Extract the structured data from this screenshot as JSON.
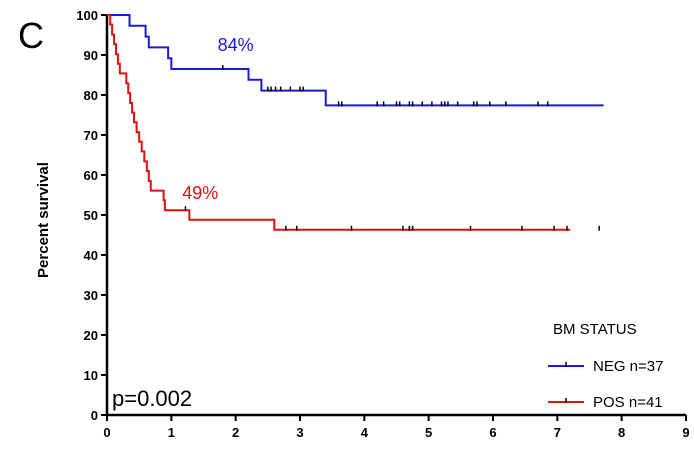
{
  "chart_data": {
    "type": "line",
    "panel_label": "C",
    "xlabel": "",
    "ylabel": "Percent survival",
    "xlim": [
      0,
      9
    ],
    "ylim": [
      0,
      100
    ],
    "x_ticks": [
      0,
      1,
      2,
      3,
      4,
      5,
      6,
      7,
      8,
      9
    ],
    "y_ticks": [
      0,
      10,
      20,
      30,
      40,
      50,
      60,
      70,
      80,
      90,
      100
    ],
    "grid": false,
    "legend_title": "BM STATUS",
    "legend_position": "bottom-right",
    "p_value_text": "p=0.002",
    "series": [
      {
        "name": "NEG n=37",
        "color": "#1a1adb",
        "annotation": "84%",
        "annotation_x": 2.0,
        "annotation_y": 91,
        "steps": [
          [
            0,
            100
          ],
          [
            0.35,
            97.3
          ],
          [
            0.6,
            94.6
          ],
          [
            0.65,
            91.9
          ],
          [
            0.95,
            89.2
          ],
          [
            1.0,
            86.5
          ],
          [
            2.2,
            83.8
          ],
          [
            2.4,
            81.1
          ],
          [
            3.4,
            77.4
          ],
          [
            7.72,
            77.4
          ]
        ],
        "censor_x": [
          1.8,
          2.5,
          2.55,
          2.62,
          2.7,
          2.85,
          3.0,
          3.05,
          3.6,
          3.65,
          4.2,
          4.3,
          4.5,
          4.55,
          4.7,
          4.75,
          4.9,
          5.05,
          5.2,
          5.25,
          5.3,
          5.45,
          5.7,
          5.75,
          5.95,
          6.2,
          6.7,
          6.85
        ]
      },
      {
        "name": "POS n=41",
        "color": "#e01010",
        "annotation": "49%",
        "annotation_x": 1.45,
        "annotation_y": 54,
        "steps": [
          [
            0,
            100
          ],
          [
            0.05,
            97.6
          ],
          [
            0.08,
            95.1
          ],
          [
            0.11,
            92.7
          ],
          [
            0.14,
            90.2
          ],
          [
            0.17,
            87.8
          ],
          [
            0.2,
            85.4
          ],
          [
            0.3,
            82.9
          ],
          [
            0.33,
            80.5
          ],
          [
            0.36,
            78.0
          ],
          [
            0.39,
            75.6
          ],
          [
            0.42,
            73.2
          ],
          [
            0.46,
            70.7
          ],
          [
            0.5,
            68.3
          ],
          [
            0.54,
            65.9
          ],
          [
            0.58,
            63.4
          ],
          [
            0.62,
            61.0
          ],
          [
            0.65,
            58.5
          ],
          [
            0.68,
            56.1
          ],
          [
            0.88,
            53.7
          ],
          [
            0.9,
            51.2
          ],
          [
            1.28,
            48.8
          ],
          [
            2.6,
            46.3
          ],
          [
            7.2,
            46.3
          ]
        ],
        "censor_x": [
          1.22,
          2.78,
          2.95,
          3.8,
          4.6,
          4.7,
          4.75,
          5.65,
          6.45,
          6.95,
          7.15,
          7.65
        ]
      }
    ]
  }
}
